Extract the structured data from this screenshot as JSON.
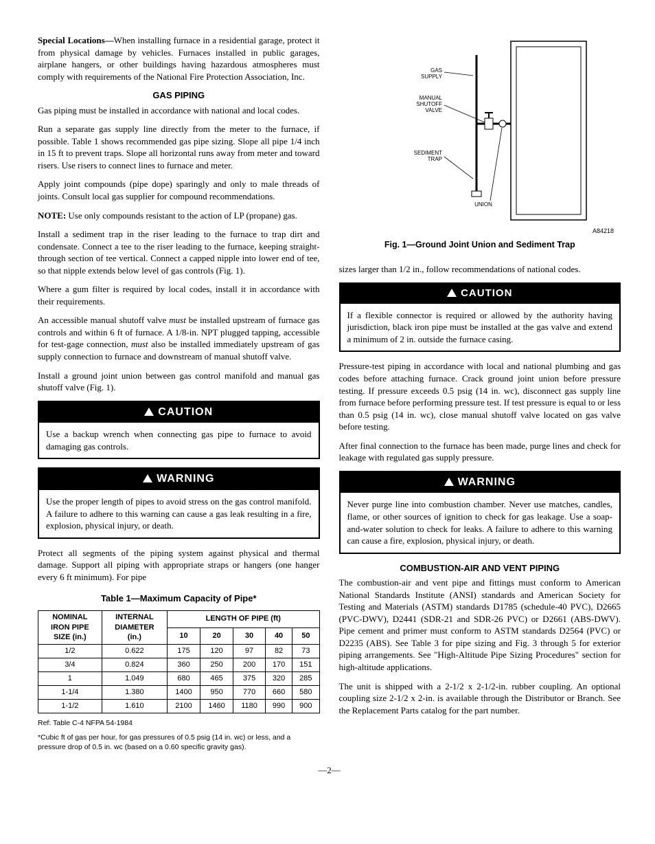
{
  "left": {
    "special_heading": "Special Locations—",
    "special_text": "When installing furnace in a residential garage, protect it from physical damage by vehicles. Furnaces installed in public garages, airplane hangers, or other buildings having hazardous atmospheres must comply with requirements of the National Fire Protection Association, Inc.",
    "gas_piping_head": "GAS PIPING",
    "p1": "Gas piping must be installed in accordance with national and local codes.",
    "p2": "Run a separate gas supply line directly from the meter to the furnace, if possible. Table 1 shows recommended gas pipe sizing. Slope all pipe 1/4 inch in 15 ft to prevent traps. Slope all horizontal runs away from meter and toward risers. Use risers to connect lines to furnace and meter.",
    "p3": "Apply joint compounds (pipe dope) sparingly and only to male threads of joints. Consult local gas supplier for compound recommendations.",
    "note_label": "NOTE:",
    "note_text": " Use only compounds resistant to the action of LP (propane) gas.",
    "p4": "Install a sediment trap in the riser leading to the furnace to trap dirt and condensate. Connect a tee to the riser leading to the furnace, keeping straight-through section of tee vertical. Connect a capped nipple into lower end of tee, so that nipple extends below level of gas controls (Fig. 1).",
    "p5": "Where a gum filter is required by local codes, install it in accordance with their requirements.",
    "p6a": "An accessible manual shutoff valve ",
    "p6_must": "must",
    "p6b": " be installed upstream of furnace gas controls and within 6 ft of furnace. A 1/8-in. NPT plugged tapping, accessible for test-gage connection, ",
    "p6c": " also be installed immediately upstream of gas supply connection to furnace and downstream of manual shutoff valve.",
    "p7": "Install a ground joint union between gas control manifold and manual gas shutoff valve (Fig. 1).",
    "caution1_head": "CAUTION",
    "caution1_body": "Use a backup wrench when connecting gas pipe to furnace to avoid damaging gas controls.",
    "warning1_head": "WARNING",
    "warning1_body": "Use the proper length of pipes to avoid stress on the gas control manifold. A failure to adhere to this warning can cause a gas leak resulting in a fire, explosion, physical injury, or death.",
    "p8": "Protect all segments of the piping system against physical and thermal damage. Support all piping with appropriate straps or hangers (one hanger every 6 ft minimum). For pipe",
    "table_title": "Table 1—Maximum Capacity of Pipe*",
    "table": {
      "col_head_1a": "NOMINAL",
      "col_head_1b": "IRON PIPE",
      "col_head_1c": "SIZE (in.)",
      "col_head_2a": "INTERNAL",
      "col_head_2b": "DIAMETER",
      "col_head_2c": "(in.)",
      "span_head": "LENGTH OF PIPE (ft)",
      "lens": [
        "10",
        "20",
        "30",
        "40",
        "50"
      ],
      "rows": [
        {
          "s": "1/2",
          "d": "0.622",
          "v": [
            "175",
            "120",
            "97",
            "82",
            "73"
          ]
        },
        {
          "s": "3/4",
          "d": "0.824",
          "v": [
            "360",
            "250",
            "200",
            "170",
            "151"
          ]
        },
        {
          "s": "1",
          "d": "1.049",
          "v": [
            "680",
            "465",
            "375",
            "320",
            "285"
          ]
        },
        {
          "s": "1-1/4",
          "d": "1.380",
          "v": [
            "1400",
            "950",
            "770",
            "660",
            "580"
          ]
        },
        {
          "s": "1-1/2",
          "d": "1.610",
          "v": [
            "2100",
            "1460",
            "1180",
            "990",
            "900"
          ]
        }
      ]
    },
    "ref": "Ref: Table C-4 NFPA 54-1984",
    "footnote": "*Cubic ft of gas per hour, for gas pressures of 0.5 psig (14 in. wc) or less, and a pressure drop of 0.5 in. wc (based on a 0.60 specific gravity gas)."
  },
  "right": {
    "fig_labels": {
      "gas_supply": "GAS\nSUPPLY",
      "manual": "MANUAL\nSHUTOFF\nVALVE",
      "sediment": "SEDIMENT\nTRAP",
      "union": "UNION"
    },
    "fig_code": "A84218",
    "fig_caption": "Fig. 1—Ground Joint Union and Sediment Trap",
    "p1": "sizes larger than 1/2 in., follow recommendations of national codes.",
    "caution2_head": "CAUTION",
    "caution2_body": "If a flexible connector is required or allowed by the authority having jurisdiction, black iron pipe must be installed at the gas valve and extend a minimum of 2 in. outside the furnace casing.",
    "p2": "Pressure-test piping in accordance with local and national plumbing and gas codes before attaching furnace. Crack ground joint union before pressure testing. If pressure exceeds 0.5 psig (14 in. wc), disconnect gas supply line from furnace before performing pressure test. If test pressure is equal to or less than 0.5 psig (14 in. wc), close manual shutoff valve located on gas valve before testing.",
    "p3": "After final connection to the furnace has been made, purge lines and check for leakage with regulated gas supply pressure.",
    "warning2_head": "WARNING",
    "warning2_body": "Never purge line into combustion chamber. Never use matches, candles, flame, or other sources of ignition to check for gas leakage. Use a soap-and-water solution to check for leaks. A failure to adhere to this warning can cause a fire, explosion, physical injury, or death.",
    "comb_head": "COMBUSTION-AIR AND VENT PIPING",
    "p4": "The combustion-air and vent pipe and fittings must conform to American National Standards Institute (ANSI) standards and American Society for Testing and Materials (ASTM) standards D1785 (schedule-40 PVC), D2665 (PVC-DWV), D2441 (SDR-21 and SDR-26 PVC) or D2661 (ABS-DWV). Pipe cement and primer must conform to ASTM standards D2564 (PVC) or D2235 (ABS). See Table 3 for pipe sizing and Fig. 3 through 5 for exterior piping arrangements. See \"High-Altitude Pipe Sizing Procedures\" section for high-altitude applications.",
    "p5": "The unit is shipped with a 2-1/2 x 2-1/2-in. rubber coupling. An optional coupling size 2-1/2 x 2-in. is available through the Distributor or Branch. See the Replacement Parts catalog for the part number."
  },
  "page_num": "—2—",
  "colors": {
    "text": "#000000",
    "bg": "#ffffff"
  }
}
